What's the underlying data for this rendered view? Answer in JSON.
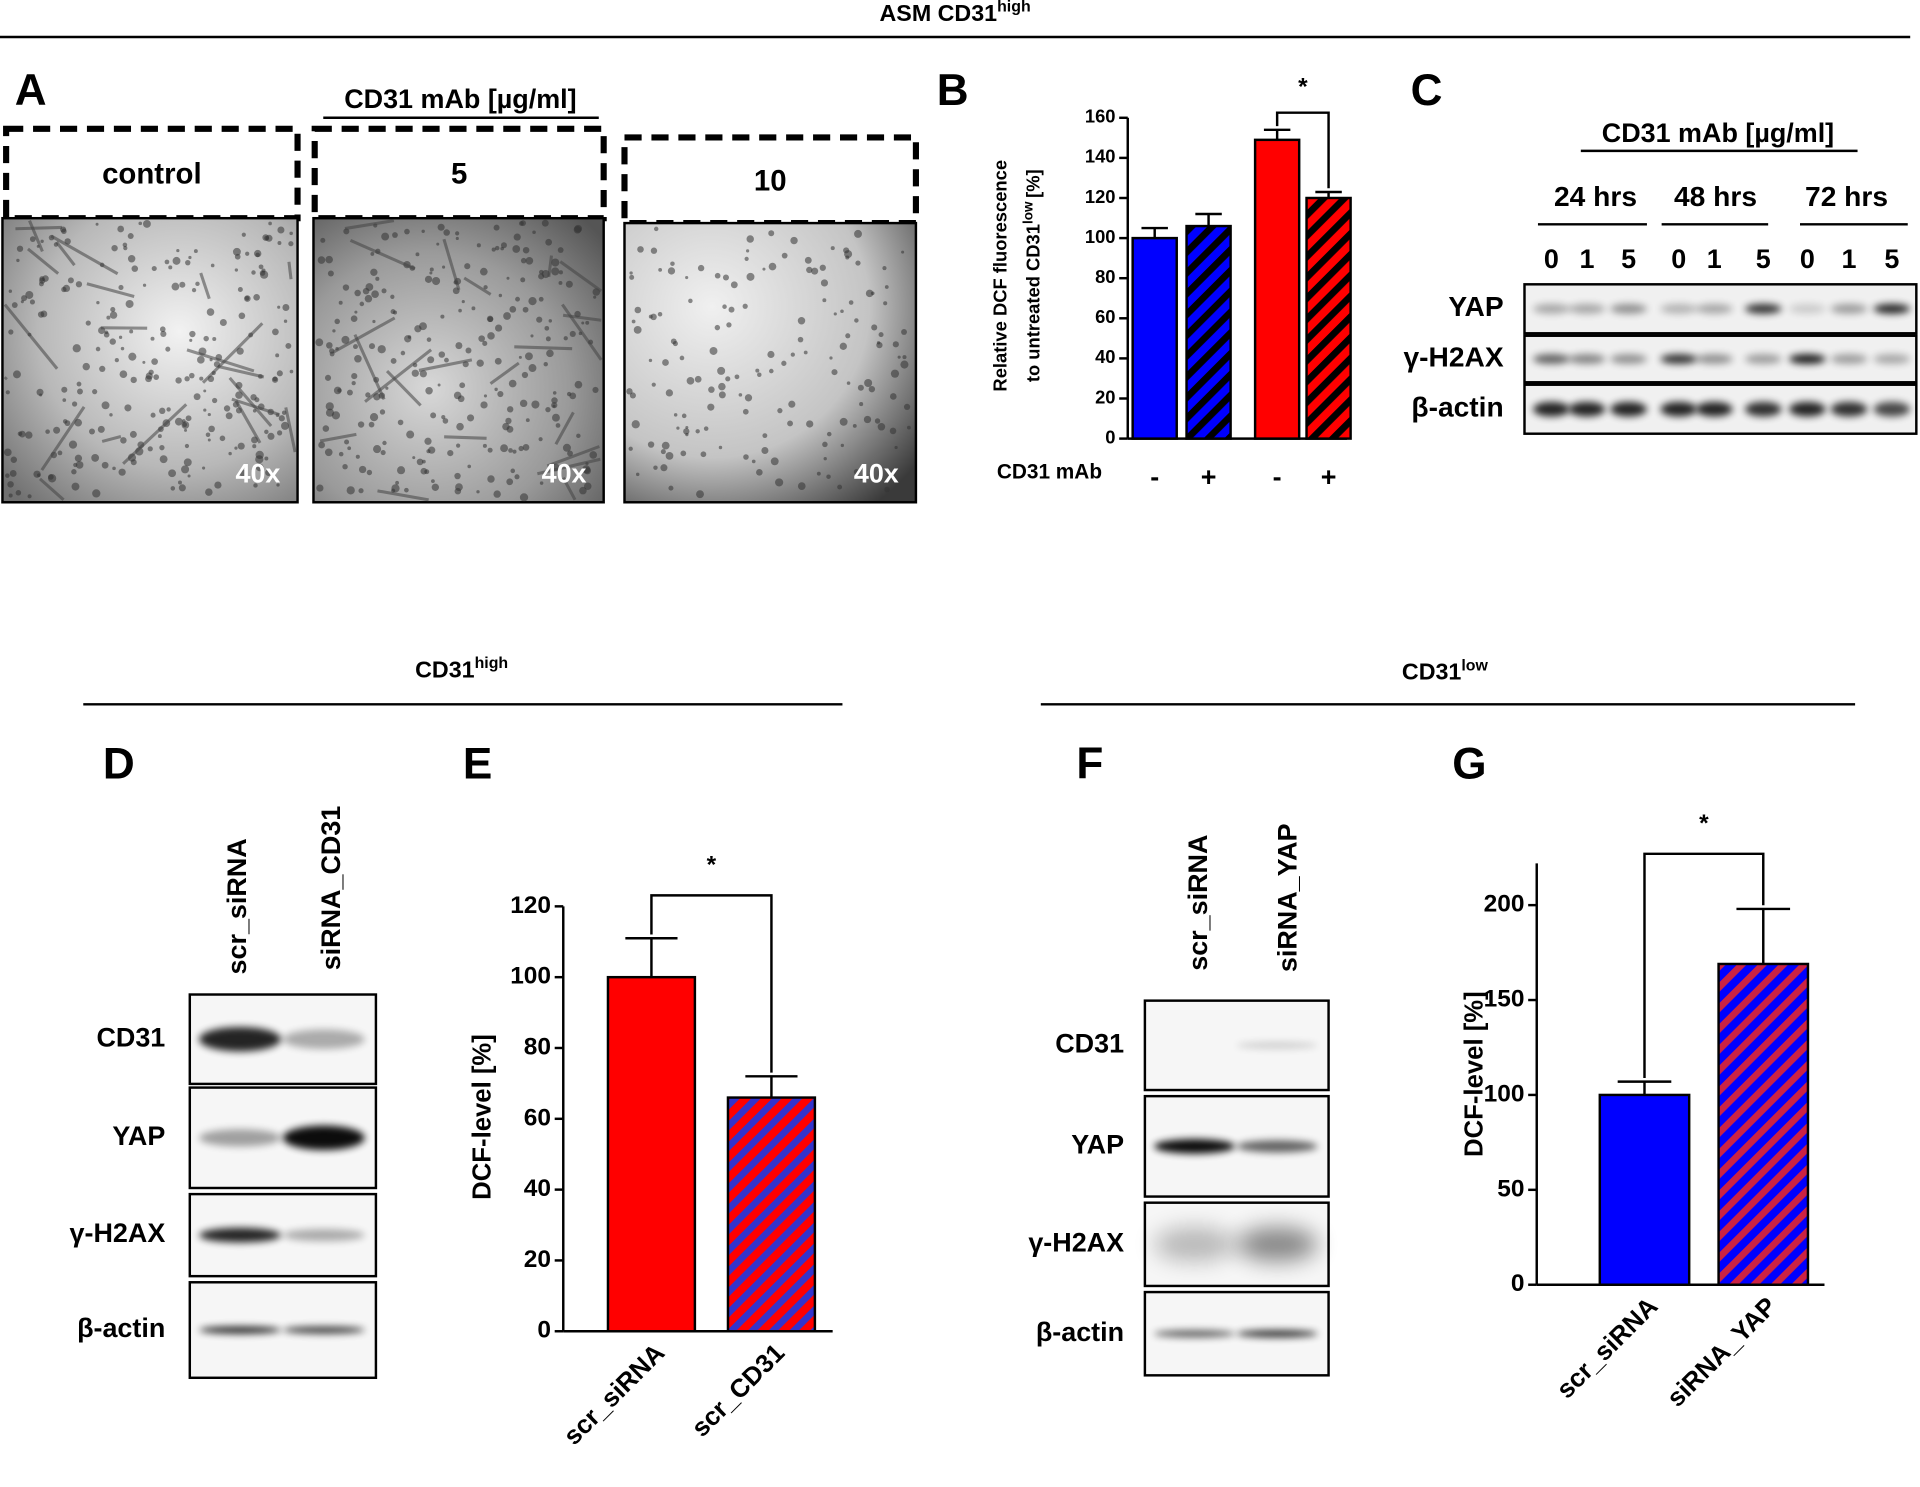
{
  "figure_title": {
    "text": "ASM CD31",
    "sup": "high"
  },
  "panel_a": {
    "label": "A",
    "header": "CD31 mAb [µg/ml]",
    "images": [
      {
        "label": "control",
        "magnification": "40x"
      },
      {
        "label": "5",
        "magnification": "40x"
      },
      {
        "label": "10",
        "magnification": "40x"
      }
    ]
  },
  "panel_c": {
    "label": "C",
    "header": "CD31 mAb [µg/ml]",
    "timepoints": [
      {
        "label": "24 hrs",
        "doses": [
          "0",
          "1",
          "5"
        ]
      },
      {
        "label": "48 hrs",
        "doses": [
          "0",
          "1",
          "5"
        ]
      },
      {
        "label": "72 hrs",
        "doses": [
          "0",
          "1",
          "5"
        ]
      }
    ],
    "blots": [
      "YAP",
      "γ-H2AX",
      "β-actin"
    ]
  },
  "section_left": {
    "text": "CD31",
    "sup": "high"
  },
  "section_right": {
    "text": "CD31",
    "sup": "low"
  },
  "panel_d": {
    "label": "D",
    "lanes": [
      "scr_siRNA",
      "siRNA_CD31"
    ],
    "blots": [
      "CD31",
      "YAP",
      "γ-H2AX",
      "β-actin"
    ]
  },
  "panel_f": {
    "label": "F",
    "lanes": [
      "scr_siRNA",
      "siRNA_YAP"
    ],
    "blots": [
      "CD31",
      "YAP",
      "γ-H2AX",
      "β-actin"
    ]
  },
  "chart_data": [
    {
      "type": "bar",
      "panel": "B",
      "ylabel": [
        "Relative DCF fluorescence",
        "to untreated  CD31"
      ],
      "ylabel_sup": "low",
      "ylabel_unit": "[%]",
      "xlabel": "CD31 mAb",
      "categories": [
        "-",
        "+",
        "-",
        "+"
      ],
      "values": [
        100,
        106,
        149,
        120
      ],
      "errors": [
        5,
        6,
        5,
        3
      ],
      "colors": [
        "#0000ff",
        "#0000ff",
        "#ff0000",
        "#ff0000"
      ],
      "hatch": [
        null,
        "#000000",
        null,
        "#000000"
      ],
      "ylim": [
        0,
        160
      ],
      "yticks": [
        0,
        20,
        40,
        60,
        80,
        100,
        120,
        140,
        160
      ],
      "significance": [
        {
          "pair": [
            2,
            3
          ],
          "label": "*"
        }
      ]
    },
    {
      "type": "bar",
      "panel": "E",
      "ylabel": [
        "DCF-level [%]"
      ],
      "categories": [
        "scr_siRNA",
        "scr_CD31"
      ],
      "values": [
        100,
        66
      ],
      "errors": [
        11,
        6
      ],
      "colors": [
        "#ff0000",
        "#ff0000"
      ],
      "hatch": [
        null,
        "#3333cc"
      ],
      "ylim": [
        0,
        120
      ],
      "yticks": [
        0,
        20,
        40,
        60,
        80,
        100,
        120
      ],
      "significance": [
        {
          "pair": [
            0,
            1
          ],
          "label": "*"
        }
      ]
    },
    {
      "type": "bar",
      "panel": "G",
      "ylabel": [
        "DCF-level [%]"
      ],
      "categories": [
        "scr_siRNA",
        "siRNA_YAP"
      ],
      "values": [
        100,
        169
      ],
      "errors": [
        7,
        29
      ],
      "colors": [
        "#0000ff",
        "#0000ff"
      ],
      "hatch": [
        null,
        "#cc2244"
      ],
      "ylim": [
        0,
        222
      ],
      "yticks": [
        0,
        50,
        100,
        150,
        200
      ],
      "significance": [
        {
          "pair": [
            0,
            1
          ],
          "label": "*"
        }
      ]
    }
  ]
}
